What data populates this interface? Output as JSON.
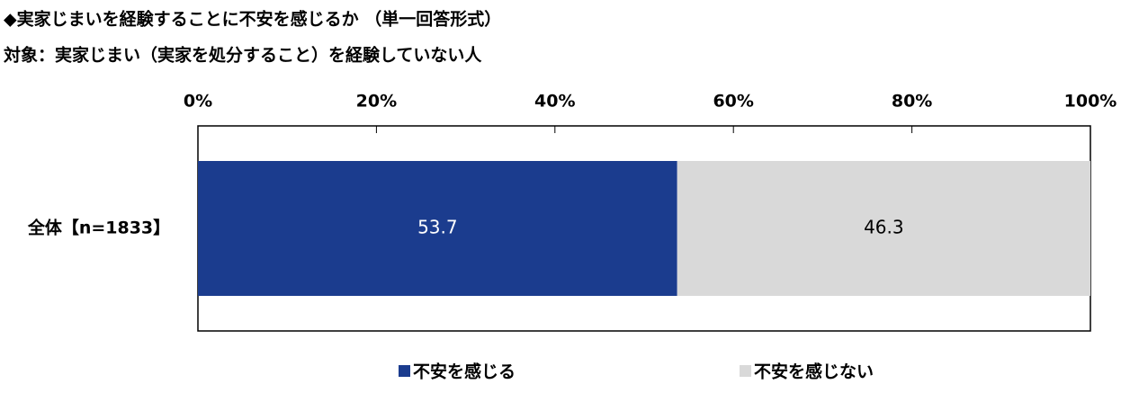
{
  "chart_data": {
    "type": "stacked-bar-horizontal",
    "title": "◆実家じまいを経験することに不安を感じるか （単一回答形式）",
    "subtitle": "対象：実家じまい（実家を処分すること）を経験していない人",
    "categories": [
      "全体【n=1833】"
    ],
    "series": [
      {
        "name": "不安を感じる",
        "color": "#1b3c8e",
        "values": [
          53.7
        ]
      },
      {
        "name": "不安を感じない",
        "color": "#d9d9d9",
        "values": [
          46.3
        ]
      }
    ],
    "xlim": [
      0,
      100
    ],
    "xticks": [
      {
        "value": 0,
        "label": "0%"
      },
      {
        "value": 20,
        "label": "20%"
      },
      {
        "value": 40,
        "label": "40%"
      },
      {
        "value": 60,
        "label": "60%"
      },
      {
        "value": 80,
        "label": "80%"
      },
      {
        "value": 100,
        "label": "100%"
      }
    ],
    "legend": "bottom"
  }
}
